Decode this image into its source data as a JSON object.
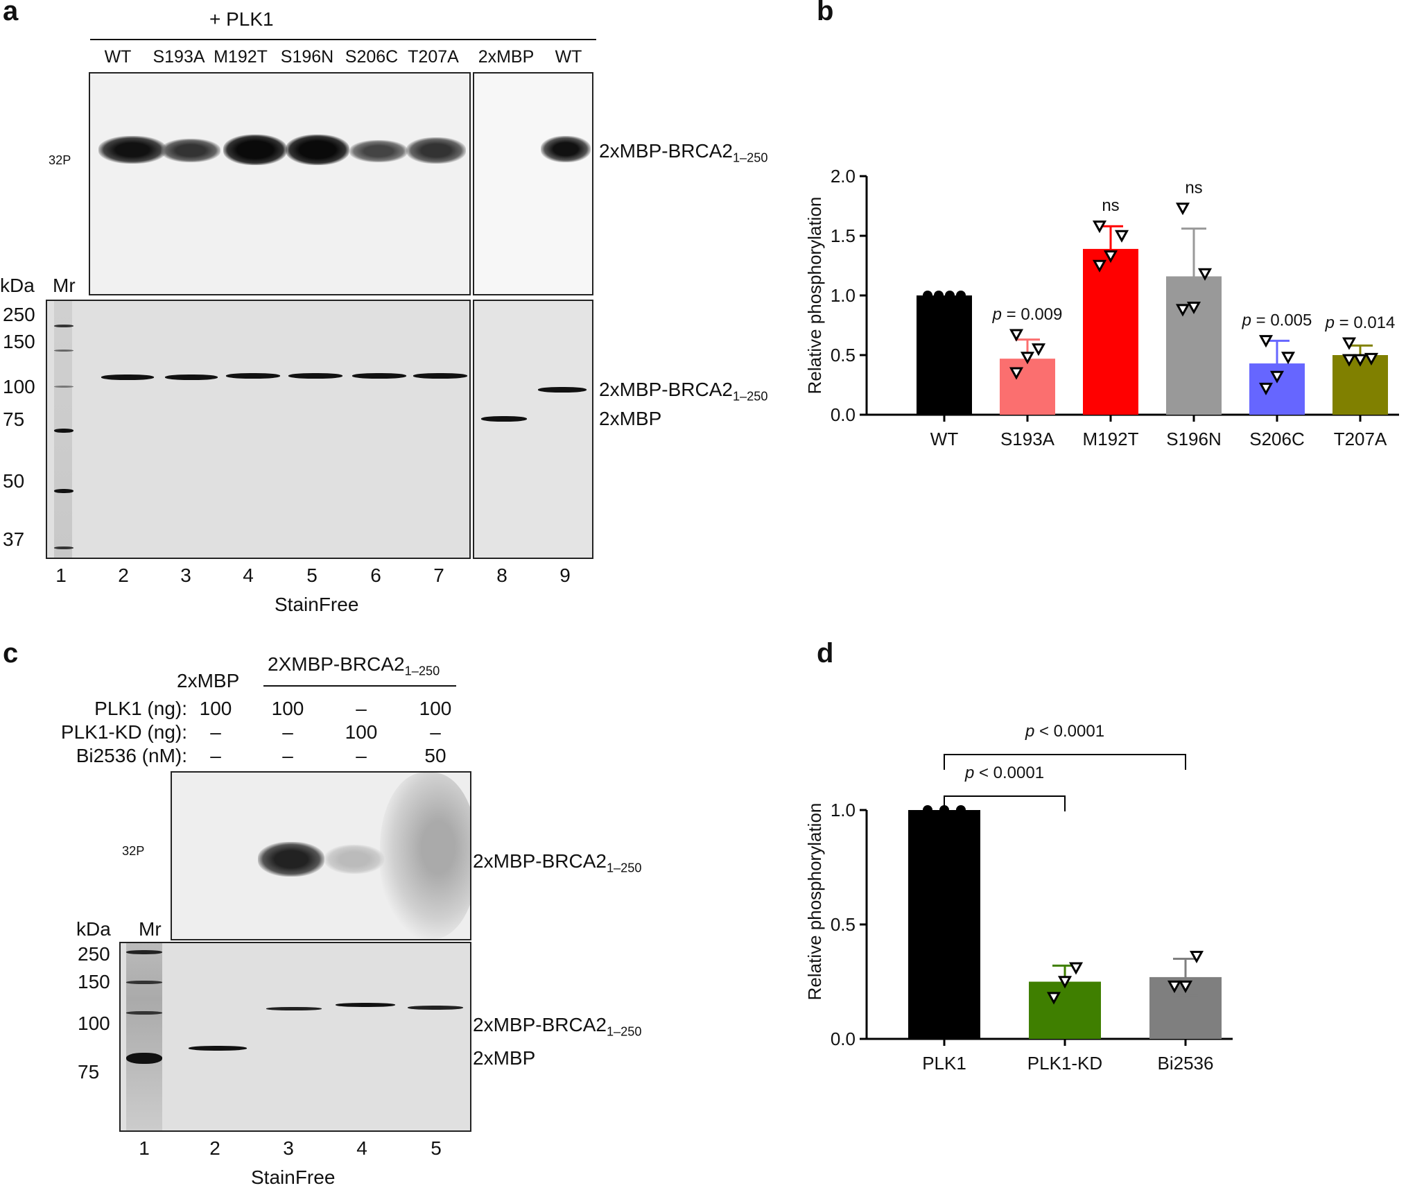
{
  "panel_a": {
    "letter": "a",
    "plk1_header": "+ PLK1",
    "lanes_top": [
      "WT",
      "S193A",
      "M192T",
      "S196N",
      "S206C",
      "T207A",
      "2xMBP",
      "WT"
    ],
    "p32_label": "32P",
    "kda": "kDa",
    "mr": "Mr",
    "markers": [
      "250",
      "150",
      "100",
      "75",
      "50",
      "37"
    ],
    "lane_numbers": [
      "1",
      "2",
      "3",
      "4",
      "5",
      "6",
      "7",
      "8",
      "9"
    ],
    "stain_label": "StainFree",
    "label_brca2_top": "2xMBP-BRCA2",
    "label_brca2_top_sub": "1–250",
    "label_brca2_bottom": "2xMBP-BRCA2",
    "label_brca2_bottom_sub": "1–250",
    "label_2xmbp": "2xMBP"
  },
  "panel_c": {
    "letter": "c",
    "header_2xmbp": "2xMBP",
    "header_brca2": "2XMBP-BRCA2",
    "header_brca2_sub": "1–250",
    "rows": [
      {
        "label": "PLK1 (ng):",
        "values": [
          "100",
          "100",
          "–",
          "100"
        ]
      },
      {
        "label": "PLK1-KD (ng):",
        "values": [
          "–",
          "–",
          "100",
          "–"
        ]
      },
      {
        "label": "Bi2536 (nM):",
        "values": [
          "–",
          "–",
          "–",
          "50"
        ]
      }
    ],
    "p32_label": "32P",
    "kda": "kDa",
    "mr": "Mr",
    "markers": [
      "250",
      "150",
      "100",
      "75"
    ],
    "lane_numbers": [
      "1",
      "2",
      "3",
      "4",
      "5"
    ],
    "stain_label": "StainFree",
    "label_brca2_top": "2xMBP-BRCA2",
    "label_brca2_top_sub": "1–250",
    "label_brca2_bottom": "2xMBP-BRCA2",
    "label_brca2_bottom_sub": "1–250",
    "label_2xmbp": "2xMBP"
  },
  "chart_data": [
    {
      "panel": "b",
      "type": "bar",
      "ylabel": "Relative phosphorylation",
      "ylim": [
        0,
        2.0
      ],
      "yticks": [
        "0.0",
        "0.5",
        "1.0",
        "1.5",
        "2.0"
      ],
      "categories": [
        "WT",
        "S193A",
        "M192T",
        "S196N",
        "S206C",
        "T207A"
      ],
      "values": [
        1.0,
        0.47,
        1.39,
        1.16,
        0.43,
        0.5
      ],
      "errors": [
        0,
        0.16,
        0.19,
        0.4,
        0.19,
        0.08
      ],
      "colors": [
        "#000000",
        "#fb6f6f",
        "#ff0000",
        "#999999",
        "#6666ff",
        "#808000"
      ],
      "annotations": [
        "",
        "p = 0.009",
        "ns",
        "ns",
        "p = 0.005",
        "p = 0.014"
      ],
      "points": [
        [
          1,
          1,
          1,
          1
        ],
        [
          0.35,
          0.48,
          0.55,
          0.67
        ],
        [
          1.25,
          1.33,
          1.5,
          1.58
        ],
        [
          0.88,
          0.9,
          1.18,
          1.73
        ],
        [
          0.22,
          0.32,
          0.48,
          0.62
        ],
        [
          0.46,
          0.46,
          0.47,
          0.6
        ]
      ]
    },
    {
      "panel": "d",
      "type": "bar",
      "ylabel": "Relative phosphorylation",
      "ylim": [
        0,
        1.2
      ],
      "yticks": [
        "0.0",
        "0.5",
        "1.0"
      ],
      "categories": [
        "PLK1",
        "PLK1-KD",
        "Bi2536"
      ],
      "values": [
        1.0,
        0.25,
        0.27
      ],
      "errors": [
        0,
        0.07,
        0.08
      ],
      "colors": [
        "#000000",
        "#3f7f00",
        "#7f7f7f"
      ],
      "points": [
        [
          1,
          1,
          1
        ],
        [
          0.18,
          0.25,
          0.31
        ],
        [
          0.23,
          0.23,
          0.36
        ]
      ],
      "comparisons": [
        {
          "from": "PLK1",
          "to": "PLK1-KD",
          "label": "p < 0.0001"
        },
        {
          "from": "PLK1",
          "to": "Bi2536",
          "label": "p < 0.0001"
        }
      ]
    }
  ]
}
